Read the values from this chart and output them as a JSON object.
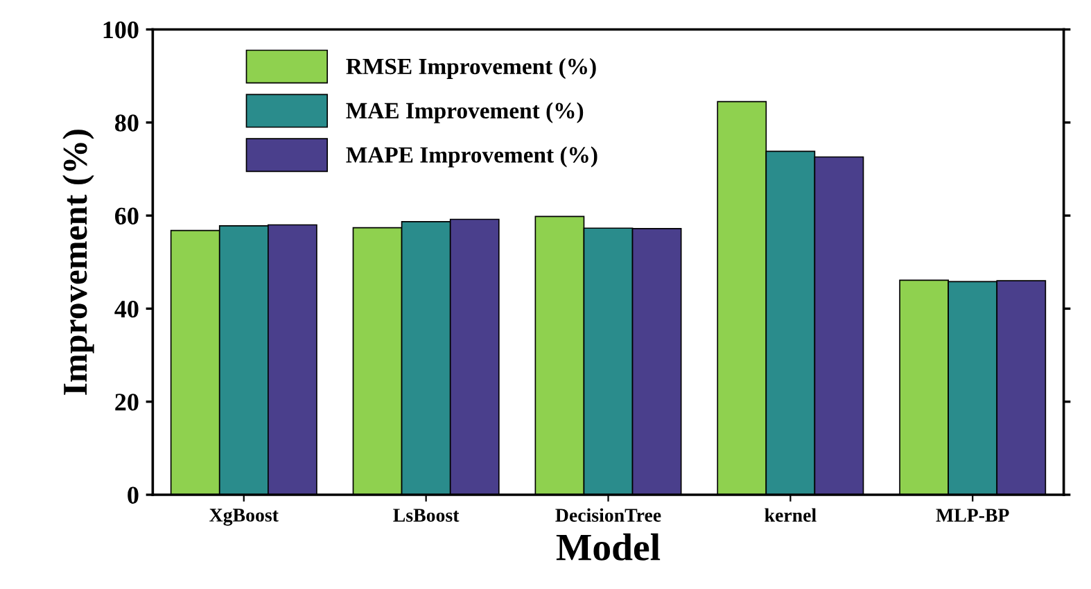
{
  "chart_data": {
    "type": "bar",
    "xlabel": "Model",
    "ylabel": "Improvement (%)",
    "categories": [
      "XgBoost",
      "LsBoost",
      "DecisionTree",
      "kernel",
      "MLP-BP"
    ],
    "series": [
      {
        "name": "RMSE Improvement (%)",
        "color": "#8fd14f",
        "values": [
          56.8,
          57.4,
          59.8,
          84.5,
          46.1
        ]
      },
      {
        "name": "MAE Improvement (%)",
        "color": "#2a8c8c",
        "values": [
          57.8,
          58.7,
          57.3,
          73.8,
          45.8
        ]
      },
      {
        "name": "MAPE Improvement (%)",
        "color": "#4a3f8c",
        "values": [
          58.0,
          59.2,
          57.2,
          72.6,
          46.0
        ]
      }
    ],
    "ylim": [
      0,
      100
    ],
    "yticks": [
      0,
      20,
      40,
      60,
      80,
      100
    ],
    "grid": false,
    "legend": "top left"
  }
}
